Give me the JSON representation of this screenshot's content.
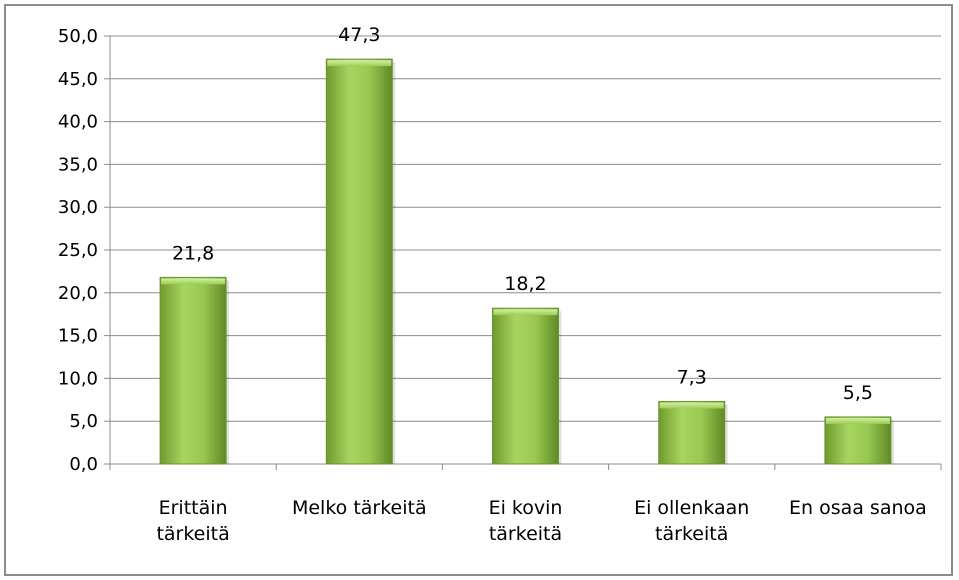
{
  "chart_data": {
    "type": "bar",
    "categories": [
      [
        "Erittäin",
        "tärkeitä"
      ],
      [
        "Melko tärkeitä"
      ],
      [
        "Ei kovin",
        "tärkeitä"
      ],
      [
        "Ei ollenkaan",
        "tärkeitä"
      ],
      [
        "En osaa sanoa"
      ]
    ],
    "values": [
      21.8,
      47.3,
      18.2,
      7.3,
      5.5
    ],
    "value_labels": [
      "21,8",
      "47,3",
      "18,2",
      "7,3",
      "5,5"
    ],
    "ylim": [
      0,
      50
    ],
    "yticks": [
      "0,0",
      "5,0",
      "10,0",
      "15,0",
      "20,0",
      "25,0",
      "30,0",
      "35,0",
      "40,0",
      "45,0",
      "50,0"
    ],
    "grid": true,
    "bar_color": "#8cc04a"
  }
}
